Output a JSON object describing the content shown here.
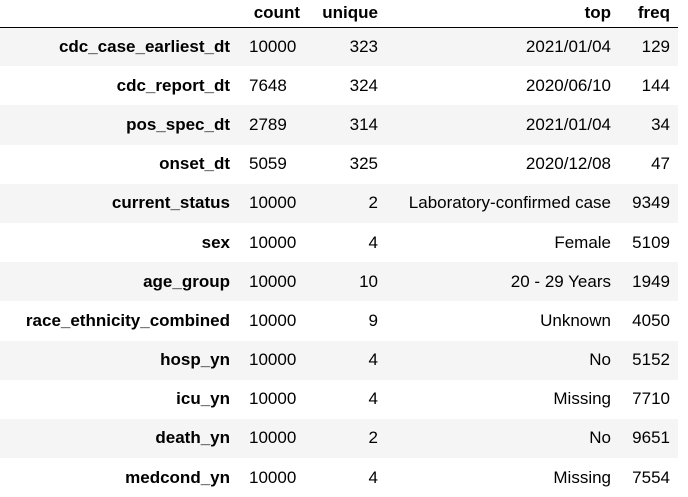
{
  "table": {
    "columns": [
      "count",
      "unique",
      "top",
      "freq"
    ],
    "rows": [
      {
        "index": "cdc_case_earliest_dt",
        "count": "10000",
        "unique": "323",
        "top": "2021/01/04",
        "freq": "129"
      },
      {
        "index": "cdc_report_dt",
        "count": "7648",
        "unique": "324",
        "top": "2020/06/10",
        "freq": "144"
      },
      {
        "index": "pos_spec_dt",
        "count": "2789",
        "unique": "314",
        "top": "2021/01/04",
        "freq": "34"
      },
      {
        "index": "onset_dt",
        "count": "5059",
        "unique": "325",
        "top": "2020/12/08",
        "freq": "47"
      },
      {
        "index": "current_status",
        "count": "10000",
        "unique": "2",
        "top": "Laboratory-confirmed case",
        "freq": "9349"
      },
      {
        "index": "sex",
        "count": "10000",
        "unique": "4",
        "top": "Female",
        "freq": "5109"
      },
      {
        "index": "age_group",
        "count": "10000",
        "unique": "10",
        "top": "20 - 29 Years",
        "freq": "1949"
      },
      {
        "index": "race_ethnicity_combined",
        "count": "10000",
        "unique": "9",
        "top": "Unknown",
        "freq": "4050"
      },
      {
        "index": "hosp_yn",
        "count": "10000",
        "unique": "4",
        "top": "No",
        "freq": "5152"
      },
      {
        "index": "icu_yn",
        "count": "10000",
        "unique": "4",
        "top": "Missing",
        "freq": "7710"
      },
      {
        "index": "death_yn",
        "count": "10000",
        "unique": "2",
        "top": "No",
        "freq": "9651"
      },
      {
        "index": "medcond_yn",
        "count": "10000",
        "unique": "4",
        "top": "Missing",
        "freq": "7554"
      }
    ]
  },
  "colors": {
    "stripe": "#f5f5f5",
    "background": "#ffffff",
    "text": "#000000"
  }
}
